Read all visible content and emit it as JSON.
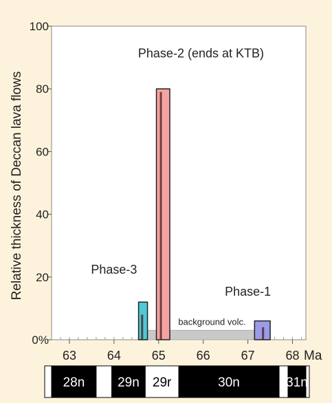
{
  "chart_data": {
    "type": "bar",
    "ylabel": "Relative thickness of Deccan lava flows",
    "x_unit": "Ma",
    "xlim": [
      62.6,
      68.3
    ],
    "ylim": [
      0,
      100
    ],
    "x_ticks": [
      63,
      64,
      65,
      66,
      67,
      68
    ],
    "y_ticks": [
      {
        "value": 0,
        "label": "0%"
      },
      {
        "value": 20,
        "label": "20"
      },
      {
        "value": 40,
        "label": "40"
      },
      {
        "value": 60,
        "label": "60"
      },
      {
        "value": 80,
        "label": "80"
      },
      {
        "value": 100,
        "label": "100"
      }
    ],
    "bars": [
      {
        "name": "Phase-3",
        "x_start": 64.55,
        "x_end": 64.75,
        "value": 12,
        "color": "#4fc9d4",
        "inner": {
          "x": 64.63,
          "top": 8
        }
      },
      {
        "name": "Phase-2",
        "x_start": 64.95,
        "x_end": 65.25,
        "value": 80,
        "color": "#f4a3a3",
        "inner": {
          "x": 65.05,
          "top": 79
        }
      },
      {
        "name": "Phase-1",
        "x_start": 67.15,
        "x_end": 67.5,
        "value": 6,
        "color": "#9b9be8",
        "inner": {
          "x": 67.34,
          "top": 4
        }
      }
    ],
    "background": {
      "label": "background volc.",
      "x_start": 64.7,
      "x_end": 67.4,
      "value": 3,
      "color": "#c9c9c9"
    },
    "annotations": [
      {
        "text": "Phase-2 (ends at KTB)",
        "x": 65.95,
        "y": 90
      },
      {
        "text": "Phase-3",
        "x": 64.0,
        "y": 21
      },
      {
        "text": "Phase-1",
        "x": 67.0,
        "y": 14
      }
    ],
    "chrons": [
      {
        "label": "28n",
        "x_start": 62.6,
        "x_end": 63.6,
        "polarity": "normal"
      },
      {
        "label": "",
        "x_start": 63.6,
        "x_end": 63.95,
        "polarity": "reverse"
      },
      {
        "label": "29n",
        "x_start": 63.95,
        "x_end": 64.7,
        "polarity": "normal"
      },
      {
        "label": "29r",
        "x_start": 64.7,
        "x_end": 65.45,
        "polarity": "reverse"
      },
      {
        "label": "30n",
        "x_start": 65.45,
        "x_end": 67.7,
        "polarity": "normal"
      },
      {
        "label": "",
        "x_start": 67.7,
        "x_end": 67.9,
        "polarity": "reverse"
      },
      {
        "label": "31n",
        "x_start": 67.9,
        "x_end": 68.3,
        "polarity": "normal"
      }
    ]
  }
}
